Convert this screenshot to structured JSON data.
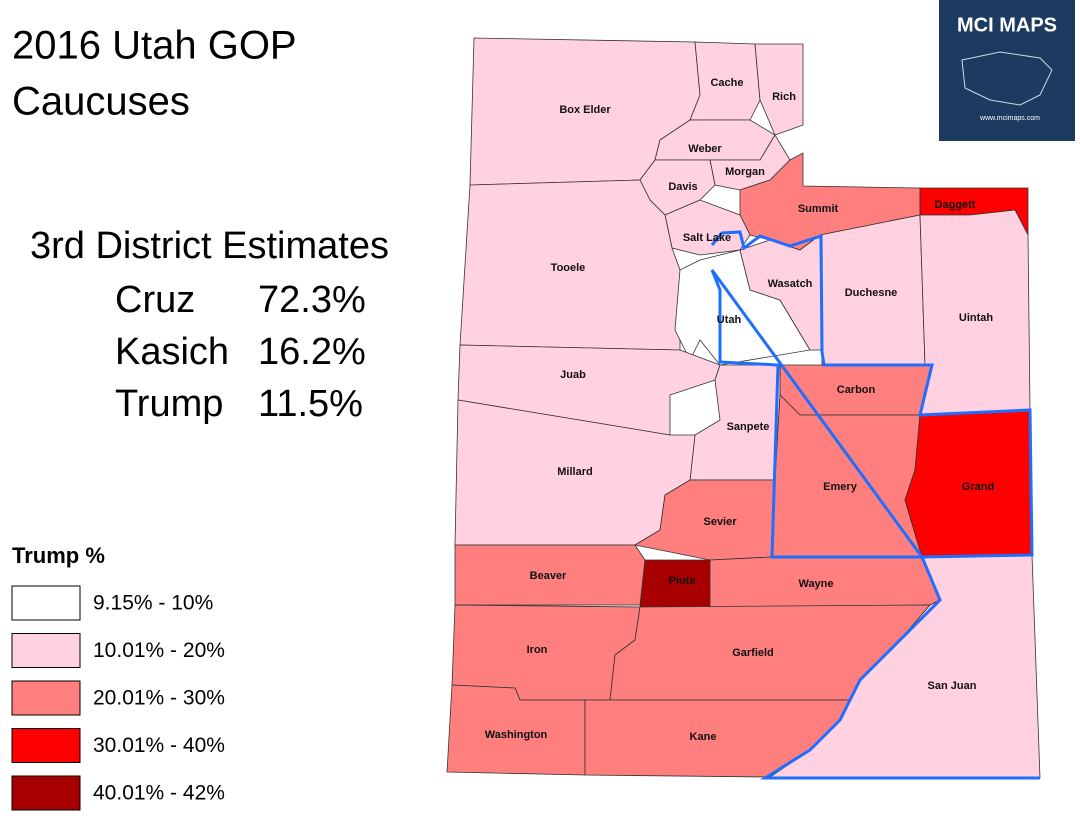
{
  "title": [
    "2016 Utah GOP",
    "Caucuses"
  ],
  "estimates": {
    "heading": "3rd District Estimates",
    "rows": [
      [
        "Cruz",
        "72.3%"
      ],
      [
        "Kasich",
        "16.2%"
      ],
      [
        "Trump",
        "11.5%"
      ]
    ]
  },
  "legend": {
    "title": "Trump %",
    "items": [
      {
        "label": "9.15% - 10%",
        "color": "#ffffff"
      },
      {
        "label": "10.01% - 20%",
        "color": "#ffd1e1"
      },
      {
        "label": "20.01% - 30%",
        "color": "#ff7f7f"
      },
      {
        "label": "30.01% - 40%",
        "color": "#ff0000"
      },
      {
        "label": "40.01% - 42%",
        "color": "#a80000"
      }
    ]
  },
  "logo": {
    "title": "MCI MAPS",
    "url": "www.mcimaps.com"
  },
  "counties": [
    {
      "name": "Box Elder",
      "color": "#ffd1e1"
    },
    {
      "name": "Cache",
      "color": "#ffd1e1"
    },
    {
      "name": "Rich",
      "color": "#ffd1e1"
    },
    {
      "name": "Weber",
      "color": "#ffd1e1"
    },
    {
      "name": "Morgan",
      "color": "#ffd1e1"
    },
    {
      "name": "Davis",
      "color": "#ffd1e1"
    },
    {
      "name": "Summit",
      "color": "#ff7f7f"
    },
    {
      "name": "Daggett",
      "color": "#ff0000"
    },
    {
      "name": "Salt Lake",
      "color": "#ffd1e1"
    },
    {
      "name": "Tooele",
      "color": "#ffd1e1"
    },
    {
      "name": "Utah",
      "color": "#ffffff"
    },
    {
      "name": "Wasatch",
      "color": "#ffd1e1"
    },
    {
      "name": "Duchesne",
      "color": "#ffd1e1"
    },
    {
      "name": "Uintah",
      "color": "#ffd1e1"
    },
    {
      "name": "Juab",
      "color": "#ffd1e1"
    },
    {
      "name": "Carbon",
      "color": "#ff7f7f"
    },
    {
      "name": "Sanpete",
      "color": "#ffd1e1"
    },
    {
      "name": "Millard",
      "color": "#ffd1e1"
    },
    {
      "name": "Emery",
      "color": "#ff7f7f"
    },
    {
      "name": "Grand",
      "color": "#ff0000"
    },
    {
      "name": "Sevier",
      "color": "#ff7f7f"
    },
    {
      "name": "Beaver",
      "color": "#ff7f7f"
    },
    {
      "name": "Piute",
      "color": "#a80000"
    },
    {
      "name": "Wayne",
      "color": "#ff7f7f"
    },
    {
      "name": "Iron",
      "color": "#ff7f7f"
    },
    {
      "name": "Garfield",
      "color": "#ff7f7f"
    },
    {
      "name": "San Juan",
      "color": "#ffd1e1"
    },
    {
      "name": "Washington",
      "color": "#ff7f7f"
    },
    {
      "name": "Kane",
      "color": "#ff7f7f"
    }
  ]
}
